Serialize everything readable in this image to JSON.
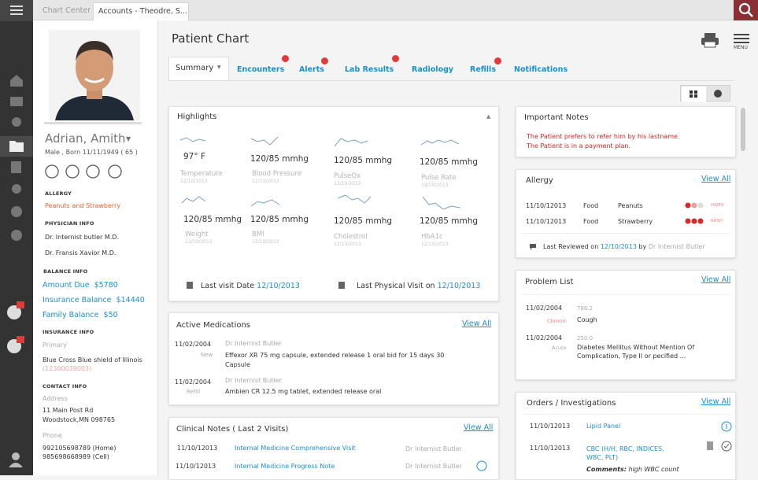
{
  "tabs": [
    "Chart Center",
    "Accounts - Theodre, S..."
  ],
  "patient": {
    "name": "Adrian, Amith",
    "info": "Male , Born 11/11/1949 ( 65 )",
    "allergy_heading": "ALLERGY",
    "allergy": "Peanuts and Strawberry",
    "physician_heading": "PHYSICIAN INFO",
    "physicians": [
      "Dr. Internist butler M.D.",
      "Dr. Fransis Xavior M.D."
    ],
    "balance_heading": "BALANCE INFO",
    "balances": [
      {
        "label": "Amount Due",
        "value": "$5780"
      },
      {
        "label": "Insurance Balance",
        "value": "$14440"
      },
      {
        "label": "Family Balance",
        "value": "$50"
      }
    ],
    "insurance_heading": "INSURANCE INFO",
    "insurance_type": "Primary",
    "insurance": "Blue Cross Blue shield of Illinois",
    "insurance_id": "(12300039003)",
    "contact_heading": "CONTACT INFO",
    "address_label": "Address",
    "address": [
      "11 Main Post Rd",
      "Woodstock,MN 098765"
    ],
    "phone_label": "Phone",
    "phones": [
      "992105698789 (Home)",
      "985698668989 (Cell)"
    ]
  },
  "page_title": "Patient Chart",
  "menu_label": "MENU",
  "nav_tabs": [
    "Summary",
    "Encounters",
    "Alerts",
    "Lab Results",
    "Radiology",
    "Refills",
    "Notifications"
  ],
  "highlights": {
    "title": "Highlights",
    "items": [
      {
        "value": "97° F",
        "label": "Temperature",
        "date": "12/10/2013"
      },
      {
        "value": "120/85 mmhg",
        "label": "Blood Pressure",
        "date": "12/10/2013"
      },
      {
        "value": "120/85 mmhg",
        "label": "PulseOx",
        "date": "12/10/2013"
      },
      {
        "value": "120/85 mmhg",
        "label": "Pulse Rate",
        "date": "12/10/2013"
      },
      {
        "value": "120/85 mmhg",
        "label": "Weight",
        "date": "12/10/2013"
      },
      {
        "value": "120/85 mmhg",
        "label": "BMI",
        "date": "12/10/2013"
      },
      {
        "value": "120/85 mmhg",
        "label": "Cholestrol",
        "date": "12/10/2013"
      },
      {
        "value": "120/85 mmhg",
        "label": "HbA1c",
        "date": "12/10/2013"
      }
    ],
    "last_visit_label": "Last visit Date",
    "last_visit": "12/10/2013",
    "last_physical_label": "Last Physical Visit on",
    "last_physical": "12/10/2013"
  },
  "medications": {
    "title": "Active Medications",
    "view_all": "View All",
    "rows": [
      {
        "date": "11/02/2004",
        "doctor": "Dr Internist Butler",
        "status": "New",
        "drug": "Effexor XR 75 mg capsule, extended release 1 oral bid for 15 days 30 Capsule"
      },
      {
        "date": "11/02/2004",
        "doctor": "Dr Internist Butler",
        "status": "Refill",
        "drug": "Ambien CR 12.5 mg tablet, extended release oral"
      }
    ]
  },
  "clinical_notes": {
    "title": "Clinical Notes ( Last 2 Visits)",
    "view_all": "View All",
    "rows": [
      {
        "date": "11/10/12013",
        "note": "Internal Medicine Comprehensive Visit",
        "doctor": "Dr Internist Butler"
      },
      {
        "date": "11/10/12013",
        "note": "Internal Medicine Progress Note",
        "doctor": "Dr Internist Butler"
      }
    ]
  },
  "important_notes": {
    "title": "Important Notes",
    "notes": [
      "The Patient prefers to refer him by his lastname.",
      "The Patient is in a payment plan."
    ]
  },
  "allergy": {
    "title": "Allergy",
    "view_all": "View All",
    "rows": [
      {
        "date": "11/10/12013",
        "type": "Food",
        "name": "Peanuts",
        "reaction": "HIVES"
      },
      {
        "date": "11/10/12013",
        "type": "Food",
        "name": "Strawberry",
        "reaction": "RASH"
      }
    ],
    "reviewed_label": "Last Reviewed on",
    "reviewed_date": "12/10/2013",
    "reviewed_by_label": "by",
    "reviewed_by": "Dr Internist Butler"
  },
  "problems": {
    "title": "Problem List",
    "view_all": "View All",
    "rows": [
      {
        "date": "11/02/2004",
        "code": "786.2",
        "status": "Chronic",
        "description": "Cough"
      },
      {
        "date": "11/02/2004",
        "code": "250.0",
        "status": "Acute",
        "description": "Diabetes Mellitus Without Mention Of Complication, Type II or pecified ..."
      }
    ]
  },
  "orders": {
    "title": "Orders / Investigations",
    "view_all": "View All",
    "rows": [
      {
        "date": "11/10/12013",
        "name": "Lipid Panel"
      },
      {
        "date": "11/10/12013",
        "name": "CBC (H/H, RBC, INDICES, WBC, PLT)"
      }
    ],
    "comments_label": "Comments:",
    "comments": "high WBC count"
  }
}
